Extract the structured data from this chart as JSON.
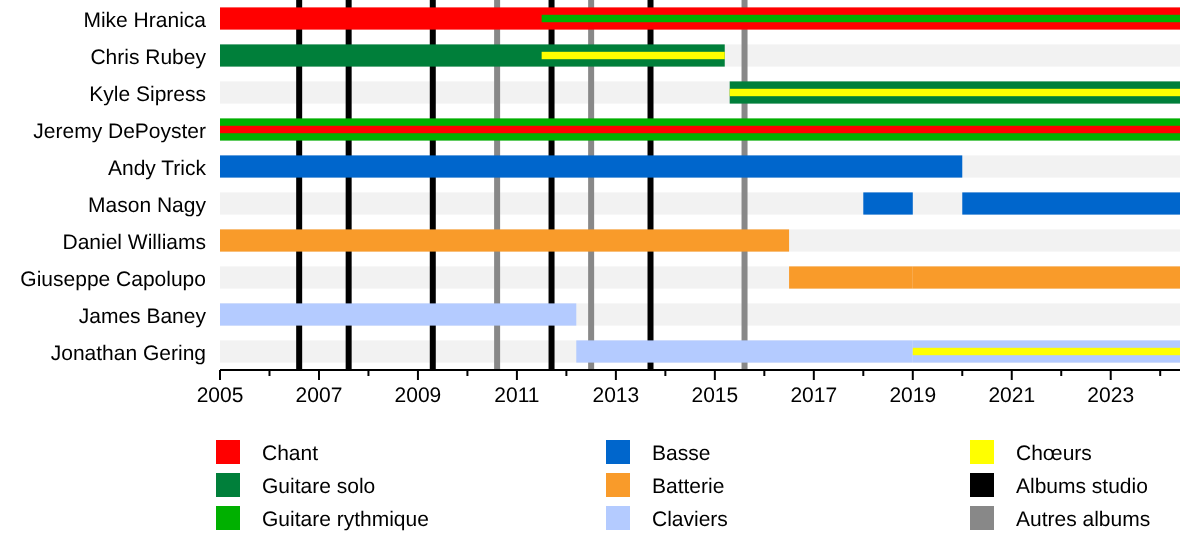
{
  "chart_data": {
    "type": "bar",
    "orientation": "horizontal",
    "categories": [
      "Mike Hranica",
      "Chris Rubey",
      "Kyle Sipress",
      "Jeremy DePoyster",
      "Andy Trick",
      "Mason Nagy",
      "Daniel Williams",
      "Giuseppe Capolupo",
      "James Baney",
      "Jonathan Gering"
    ],
    "xlim": [
      2005,
      2024.4
    ],
    "xticks": [
      2005,
      {
        "value": 2006,
        "label": null
      },
      2007,
      {
        "value": 2008,
        "label": null
      },
      2009,
      {
        "value": 2010,
        "label": null
      },
      2011,
      {
        "value": 2012,
        "label": null
      },
      2013,
      {
        "value": 2014,
        "label": null
      },
      2015,
      {
        "value": 2016,
        "label": null
      },
      2017,
      {
        "value": 2018,
        "label": null
      },
      2019,
      {
        "value": 2020,
        "label": null
      },
      2021,
      {
        "value": 2022,
        "label": null
      },
      2023,
      {
        "value": 2024,
        "label": null
      }
    ],
    "series": [
      {
        "name": "Chant",
        "color": "#ff0000",
        "base": [
          2005,
          null,
          null,
          null,
          null,
          null,
          null,
          null,
          null,
          null
        ],
        "values": [
          19.4,
          null,
          null,
          null,
          null,
          null,
          null,
          null,
          null,
          null
        ]
      },
      {
        "name": "Guitare solo",
        "color": "#007f3a",
        "base": [
          null,
          2005,
          2015.3,
          null,
          null,
          null,
          null,
          null,
          null,
          null
        ],
        "values": [
          null,
          10.2,
          9.1,
          null,
          null,
          null,
          null,
          null,
          null,
          null
        ]
      },
      {
        "name": "Guitare rythmique",
        "color": "#00b000",
        "base": [
          null,
          null,
          null,
          2005,
          null,
          null,
          null,
          null,
          null,
          null
        ],
        "values": [
          null,
          null,
          null,
          19.4,
          null,
          null,
          null,
          null,
          null,
          null
        ]
      },
      {
        "name": "Basse",
        "color": "#0066cc",
        "base": [
          null,
          null,
          null,
          null,
          2005,
          2020,
          null,
          null,
          null,
          null
        ],
        "values": [
          null,
          null,
          null,
          null,
          15,
          4.4,
          null,
          null,
          null,
          null
        ]
      },
      {
        "name": "Batterie",
        "color": "#f99b2a",
        "base": [
          null,
          null,
          null,
          null,
          null,
          null,
          2005,
          2019,
          null,
          null
        ],
        "values": [
          null,
          null,
          null,
          null,
          null,
          null,
          11.5,
          5.4,
          null,
          null
        ]
      },
      {
        "name": "Claviers",
        "color": "#b4cbff",
        "base": [
          null,
          null,
          null,
          null,
          null,
          null,
          null,
          null,
          2005,
          2019
        ],
        "values": [
          null,
          null,
          null,
          null,
          null,
          null,
          null,
          null,
          7.2,
          5.4
        ]
      },
      {
        "name": "Chœurs",
        "color": "#ffff00",
        "base": [
          null,
          2011.5,
          2015.3,
          null,
          null,
          null,
          null,
          null,
          null,
          2019
        ],
        "values": [
          null,
          3.7,
          9.1,
          null,
          null,
          null,
          null,
          null,
          null,
          5.4
        ]
      },
      {
        "color": "#00b000",
        "base": [
          2011.5,
          null,
          null,
          null,
          null,
          null,
          null,
          null,
          null,
          null
        ],
        "values": [
          12.9,
          null,
          null,
          null,
          null,
          null,
          null,
          null,
          null,
          null
        ]
      },
      {
        "color": "#ff0000",
        "base": [
          null,
          null,
          null,
          2005,
          null,
          null,
          null,
          null,
          null,
          null
        ],
        "values": [
          null,
          null,
          null,
          19.4,
          null,
          null,
          null,
          null,
          null,
          null
        ]
      },
      {
        "color": "#0066cc",
        "base": [
          null,
          null,
          null,
          null,
          null,
          2018,
          null,
          null,
          null,
          null
        ],
        "values": [
          null,
          null,
          null,
          null,
          null,
          1,
          null,
          null,
          null,
          null
        ]
      },
      {
        "color": "#f99b2a",
        "base": [
          null,
          null,
          null,
          null,
          null,
          null,
          null,
          2016.5,
          null,
          null
        ],
        "values": [
          null,
          null,
          null,
          null,
          null,
          null,
          null,
          2.5,
          null,
          null
        ]
      },
      {
        "color": "#b4cbff",
        "base": [
          null,
          null,
          null,
          null,
          null,
          null,
          null,
          null,
          null,
          2012.2
        ],
        "values": [
          null,
          null,
          null,
          null,
          null,
          null,
          null,
          null,
          null,
          6.8
        ]
      }
    ],
    "ref_lines": [
      {
        "axis": "x",
        "value": 2006.6,
        "label": "Albums studio",
        "color": "#000000"
      },
      {
        "axis": "x",
        "value": 2007.6,
        "color": "#000000"
      },
      {
        "axis": "x",
        "value": 2009.3,
        "color": "#000000"
      },
      {
        "axis": "x",
        "value": 2011.7,
        "color": "#000000"
      },
      {
        "axis": "x",
        "value": 2013.7,
        "color": "#000000"
      },
      {
        "axis": "x",
        "value": 2010.6,
        "label": "Autres albums",
        "color": "#888888"
      },
      {
        "axis": "x",
        "value": 2012.5,
        "color": "#888888"
      },
      {
        "axis": "x",
        "value": 2015.6,
        "color": "#888888"
      }
    ],
    "legend": "bottom"
  }
}
